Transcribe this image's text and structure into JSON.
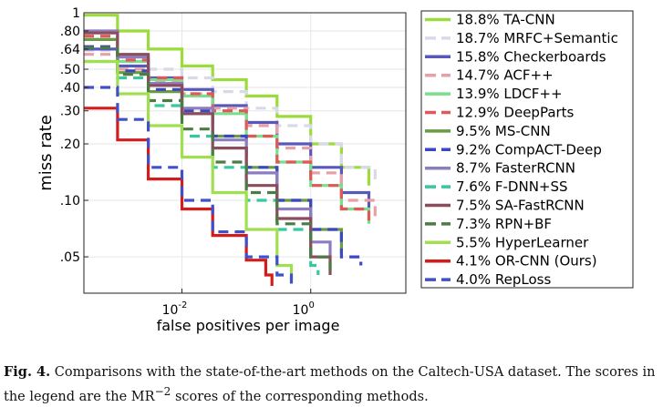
{
  "chart_data": {
    "type": "line",
    "xlabel": "false positives per image",
    "ylabel": "miss rate",
    "x_scale": "log",
    "y_scale": "log",
    "xlim": [
      0.0003,
      30
    ],
    "ylim": [
      0.032,
      1
    ],
    "x_ticks": [
      {
        "value": 0.01,
        "base": "10",
        "exp": "-2"
      },
      {
        "value": 1,
        "base": "10",
        "exp": "0"
      }
    ],
    "y_ticks": [
      {
        "value": 1,
        "label": "1"
      },
      {
        "value": 0.8,
        "label": ".80"
      },
      {
        "value": 0.64,
        "label": ".64"
      },
      {
        "value": 0.5,
        "label": ".50"
      },
      {
        "value": 0.4,
        "label": ".40"
      },
      {
        "value": 0.3,
        "label": ".30"
      },
      {
        "value": 0.2,
        "label": ".20"
      },
      {
        "value": 0.1,
        "label": ".10"
      },
      {
        "value": 0.05,
        "label": ".05"
      }
    ],
    "legend_position": "right",
    "series": [
      {
        "name": "TA-CNN",
        "score": "18.8%",
        "label": "18.8% TA-CNN",
        "color": "#9bdc3c",
        "dash": "solid",
        "points": [
          [
            0.0003,
            0.97
          ],
          [
            0.001,
            0.8
          ],
          [
            0.003,
            0.64
          ],
          [
            0.01,
            0.52
          ],
          [
            0.03,
            0.44
          ],
          [
            0.1,
            0.36
          ],
          [
            0.3,
            0.28
          ],
          [
            1,
            0.2
          ],
          [
            3,
            0.15
          ],
          [
            8,
            0.12
          ]
        ]
      },
      {
        "name": "MRFC+Semantic",
        "score": "18.7%",
        "label": "18.7% MRFC+Semantic",
        "color": "#d9d9ec",
        "dash": "dashed",
        "points": [
          [
            0.0003,
            0.63
          ],
          [
            0.001,
            0.55
          ],
          [
            0.003,
            0.5
          ],
          [
            0.01,
            0.45
          ],
          [
            0.03,
            0.38
          ],
          [
            0.1,
            0.31
          ],
          [
            0.3,
            0.25
          ],
          [
            1,
            0.2
          ],
          [
            3,
            0.15
          ],
          [
            10,
            0.12
          ]
        ]
      },
      {
        "name": "Checkerboards",
        "score": "15.8%",
        "label": "15.8% Checkerboards",
        "color": "#5858b8",
        "dash": "solid",
        "points": [
          [
            0.0003,
            0.64
          ],
          [
            0.001,
            0.52
          ],
          [
            0.003,
            0.45
          ],
          [
            0.01,
            0.39
          ],
          [
            0.03,
            0.32
          ],
          [
            0.1,
            0.26
          ],
          [
            0.3,
            0.2
          ],
          [
            1,
            0.15
          ],
          [
            3,
            0.11
          ],
          [
            8,
            0.09
          ]
        ]
      },
      {
        "name": "ACF++",
        "score": "14.7%",
        "label": "14.7% ACF++",
        "color": "#e8a0a8",
        "dash": "dashed",
        "points": [
          [
            0.0003,
            0.6
          ],
          [
            0.001,
            0.5
          ],
          [
            0.003,
            0.43
          ],
          [
            0.01,
            0.37
          ],
          [
            0.03,
            0.31
          ],
          [
            0.1,
            0.25
          ],
          [
            0.3,
            0.19
          ],
          [
            1,
            0.14
          ],
          [
            3,
            0.1
          ],
          [
            10,
            0.08
          ]
        ]
      },
      {
        "name": "LDCF++",
        "score": "13.9%",
        "label": "13.9% LDCF++",
        "color": "#78e08c",
        "dash": "solid",
        "points": [
          [
            0.0003,
            0.72
          ],
          [
            0.001,
            0.55
          ],
          [
            0.003,
            0.44
          ],
          [
            0.01,
            0.36
          ],
          [
            0.03,
            0.29
          ],
          [
            0.1,
            0.22
          ],
          [
            0.3,
            0.16
          ],
          [
            1,
            0.12
          ],
          [
            3,
            0.09
          ],
          [
            8,
            0.075
          ]
        ]
      },
      {
        "name": "DeepParts",
        "score": "12.9%",
        "label": "12.9% DeepParts",
        "color": "#e05858",
        "dash": "dashed",
        "points": [
          [
            0.0003,
            0.75
          ],
          [
            0.001,
            0.56
          ],
          [
            0.003,
            0.45
          ],
          [
            0.01,
            0.37
          ],
          [
            0.03,
            0.3
          ],
          [
            0.1,
            0.22
          ],
          [
            0.3,
            0.16
          ],
          [
            1,
            0.12
          ],
          [
            3,
            0.09
          ],
          [
            8,
            0.075
          ]
        ]
      },
      {
        "name": "MS-CNN",
        "score": "9.5%",
        "label": "9.5% MS-CNN",
        "color": "#6a9c44",
        "dash": "solid",
        "points": [
          [
            0.0003,
            0.72
          ],
          [
            0.001,
            0.48
          ],
          [
            0.003,
            0.38
          ],
          [
            0.01,
            0.29
          ],
          [
            0.03,
            0.22
          ],
          [
            0.1,
            0.15
          ],
          [
            0.3,
            0.1
          ],
          [
            1,
            0.07
          ],
          [
            3,
            0.052
          ]
        ]
      },
      {
        "name": "CompACT-Deep",
        "score": "9.2%",
        "label": "9.2% CompACT-Deep",
        "color": "#3c48c0",
        "dash": "dashed",
        "points": [
          [
            0.0003,
            0.66
          ],
          [
            0.001,
            0.49
          ],
          [
            0.003,
            0.39
          ],
          [
            0.01,
            0.3
          ],
          [
            0.03,
            0.22
          ],
          [
            0.1,
            0.15
          ],
          [
            0.3,
            0.1
          ],
          [
            1,
            0.07
          ],
          [
            3,
            0.05
          ],
          [
            6,
            0.045
          ]
        ]
      },
      {
        "name": "FasterRCNN",
        "score": "8.7%",
        "label": "8.7% FasterRCNN",
        "color": "#8c7cc0",
        "dash": "solid",
        "points": [
          [
            0.0003,
            0.8
          ],
          [
            0.001,
            0.58
          ],
          [
            0.003,
            0.42
          ],
          [
            0.01,
            0.31
          ],
          [
            0.03,
            0.21
          ],
          [
            0.1,
            0.14
          ],
          [
            0.3,
            0.09
          ],
          [
            1,
            0.06
          ],
          [
            2,
            0.05
          ]
        ]
      },
      {
        "name": "F-DNN+SS",
        "score": "7.6%",
        "label": "7.6% F-DNN+SS",
        "color": "#38c8a0",
        "dash": "dashed",
        "points": [
          [
            0.0003,
            0.55
          ],
          [
            0.001,
            0.45
          ],
          [
            0.003,
            0.32
          ],
          [
            0.01,
            0.22
          ],
          [
            0.03,
            0.15
          ],
          [
            0.1,
            0.1
          ],
          [
            0.3,
            0.07
          ],
          [
            1,
            0.045
          ],
          [
            1.3,
            0.04
          ]
        ]
      },
      {
        "name": "SA-FastRCNN",
        "score": "7.5%",
        "label": "7.5% SA-FastRCNN",
        "color": "#8c4c5c",
        "dash": "solid",
        "points": [
          [
            0.0003,
            0.78
          ],
          [
            0.001,
            0.6
          ],
          [
            0.003,
            0.41
          ],
          [
            0.01,
            0.29
          ],
          [
            0.03,
            0.19
          ],
          [
            0.1,
            0.12
          ],
          [
            0.3,
            0.08
          ],
          [
            1,
            0.05
          ],
          [
            2,
            0.04
          ]
        ]
      },
      {
        "name": "RPN+BF",
        "score": "7.3%",
        "label": "7.3% RPN+BF",
        "color": "#4c7c44",
        "dash": "dashed",
        "points": [
          [
            0.0003,
            0.65
          ],
          [
            0.001,
            0.47
          ],
          [
            0.003,
            0.34
          ],
          [
            0.01,
            0.24
          ],
          [
            0.03,
            0.16
          ],
          [
            0.1,
            0.11
          ],
          [
            0.3,
            0.075
          ],
          [
            1,
            0.05
          ],
          [
            2,
            0.04
          ]
        ]
      },
      {
        "name": "HyperLearner",
        "score": "5.5%",
        "label": "5.5% HyperLearner",
        "color": "#a0e050",
        "dash": "solid",
        "points": [
          [
            0.0003,
            0.55
          ],
          [
            0.001,
            0.37
          ],
          [
            0.003,
            0.25
          ],
          [
            0.01,
            0.17
          ],
          [
            0.03,
            0.11
          ],
          [
            0.1,
            0.07
          ],
          [
            0.3,
            0.045
          ],
          [
            0.5,
            0.038
          ]
        ]
      },
      {
        "name": "OR-CNN (Ours)",
        "score": "4.1%",
        "label": "4.1% OR-CNN (Ours)",
        "color": "#d41c1c",
        "dash": "solid",
        "points": [
          [
            0.0003,
            0.31
          ],
          [
            0.001,
            0.21
          ],
          [
            0.003,
            0.13
          ],
          [
            0.01,
            0.09
          ],
          [
            0.03,
            0.065
          ],
          [
            0.1,
            0.048
          ],
          [
            0.2,
            0.04
          ],
          [
            0.25,
            0.035
          ]
        ]
      },
      {
        "name": "RepLoss",
        "score": "4.0%",
        "label": "4.0% RepLoss",
        "color": "#4050c8",
        "dash": "dashed",
        "points": [
          [
            0.0003,
            0.4
          ],
          [
            0.001,
            0.27
          ],
          [
            0.003,
            0.15
          ],
          [
            0.01,
            0.1
          ],
          [
            0.03,
            0.068
          ],
          [
            0.1,
            0.05
          ],
          [
            0.3,
            0.04
          ],
          [
            0.5,
            0.035
          ]
        ]
      }
    ]
  },
  "caption": {
    "label": "Fig. 4.",
    "text": "Comparisons with the state-of-the-art methods on the Caltech-USA dataset. The scores in the legend are the MR",
    "superscript": "−2",
    "text_end": "scores of the corresponding methods."
  }
}
